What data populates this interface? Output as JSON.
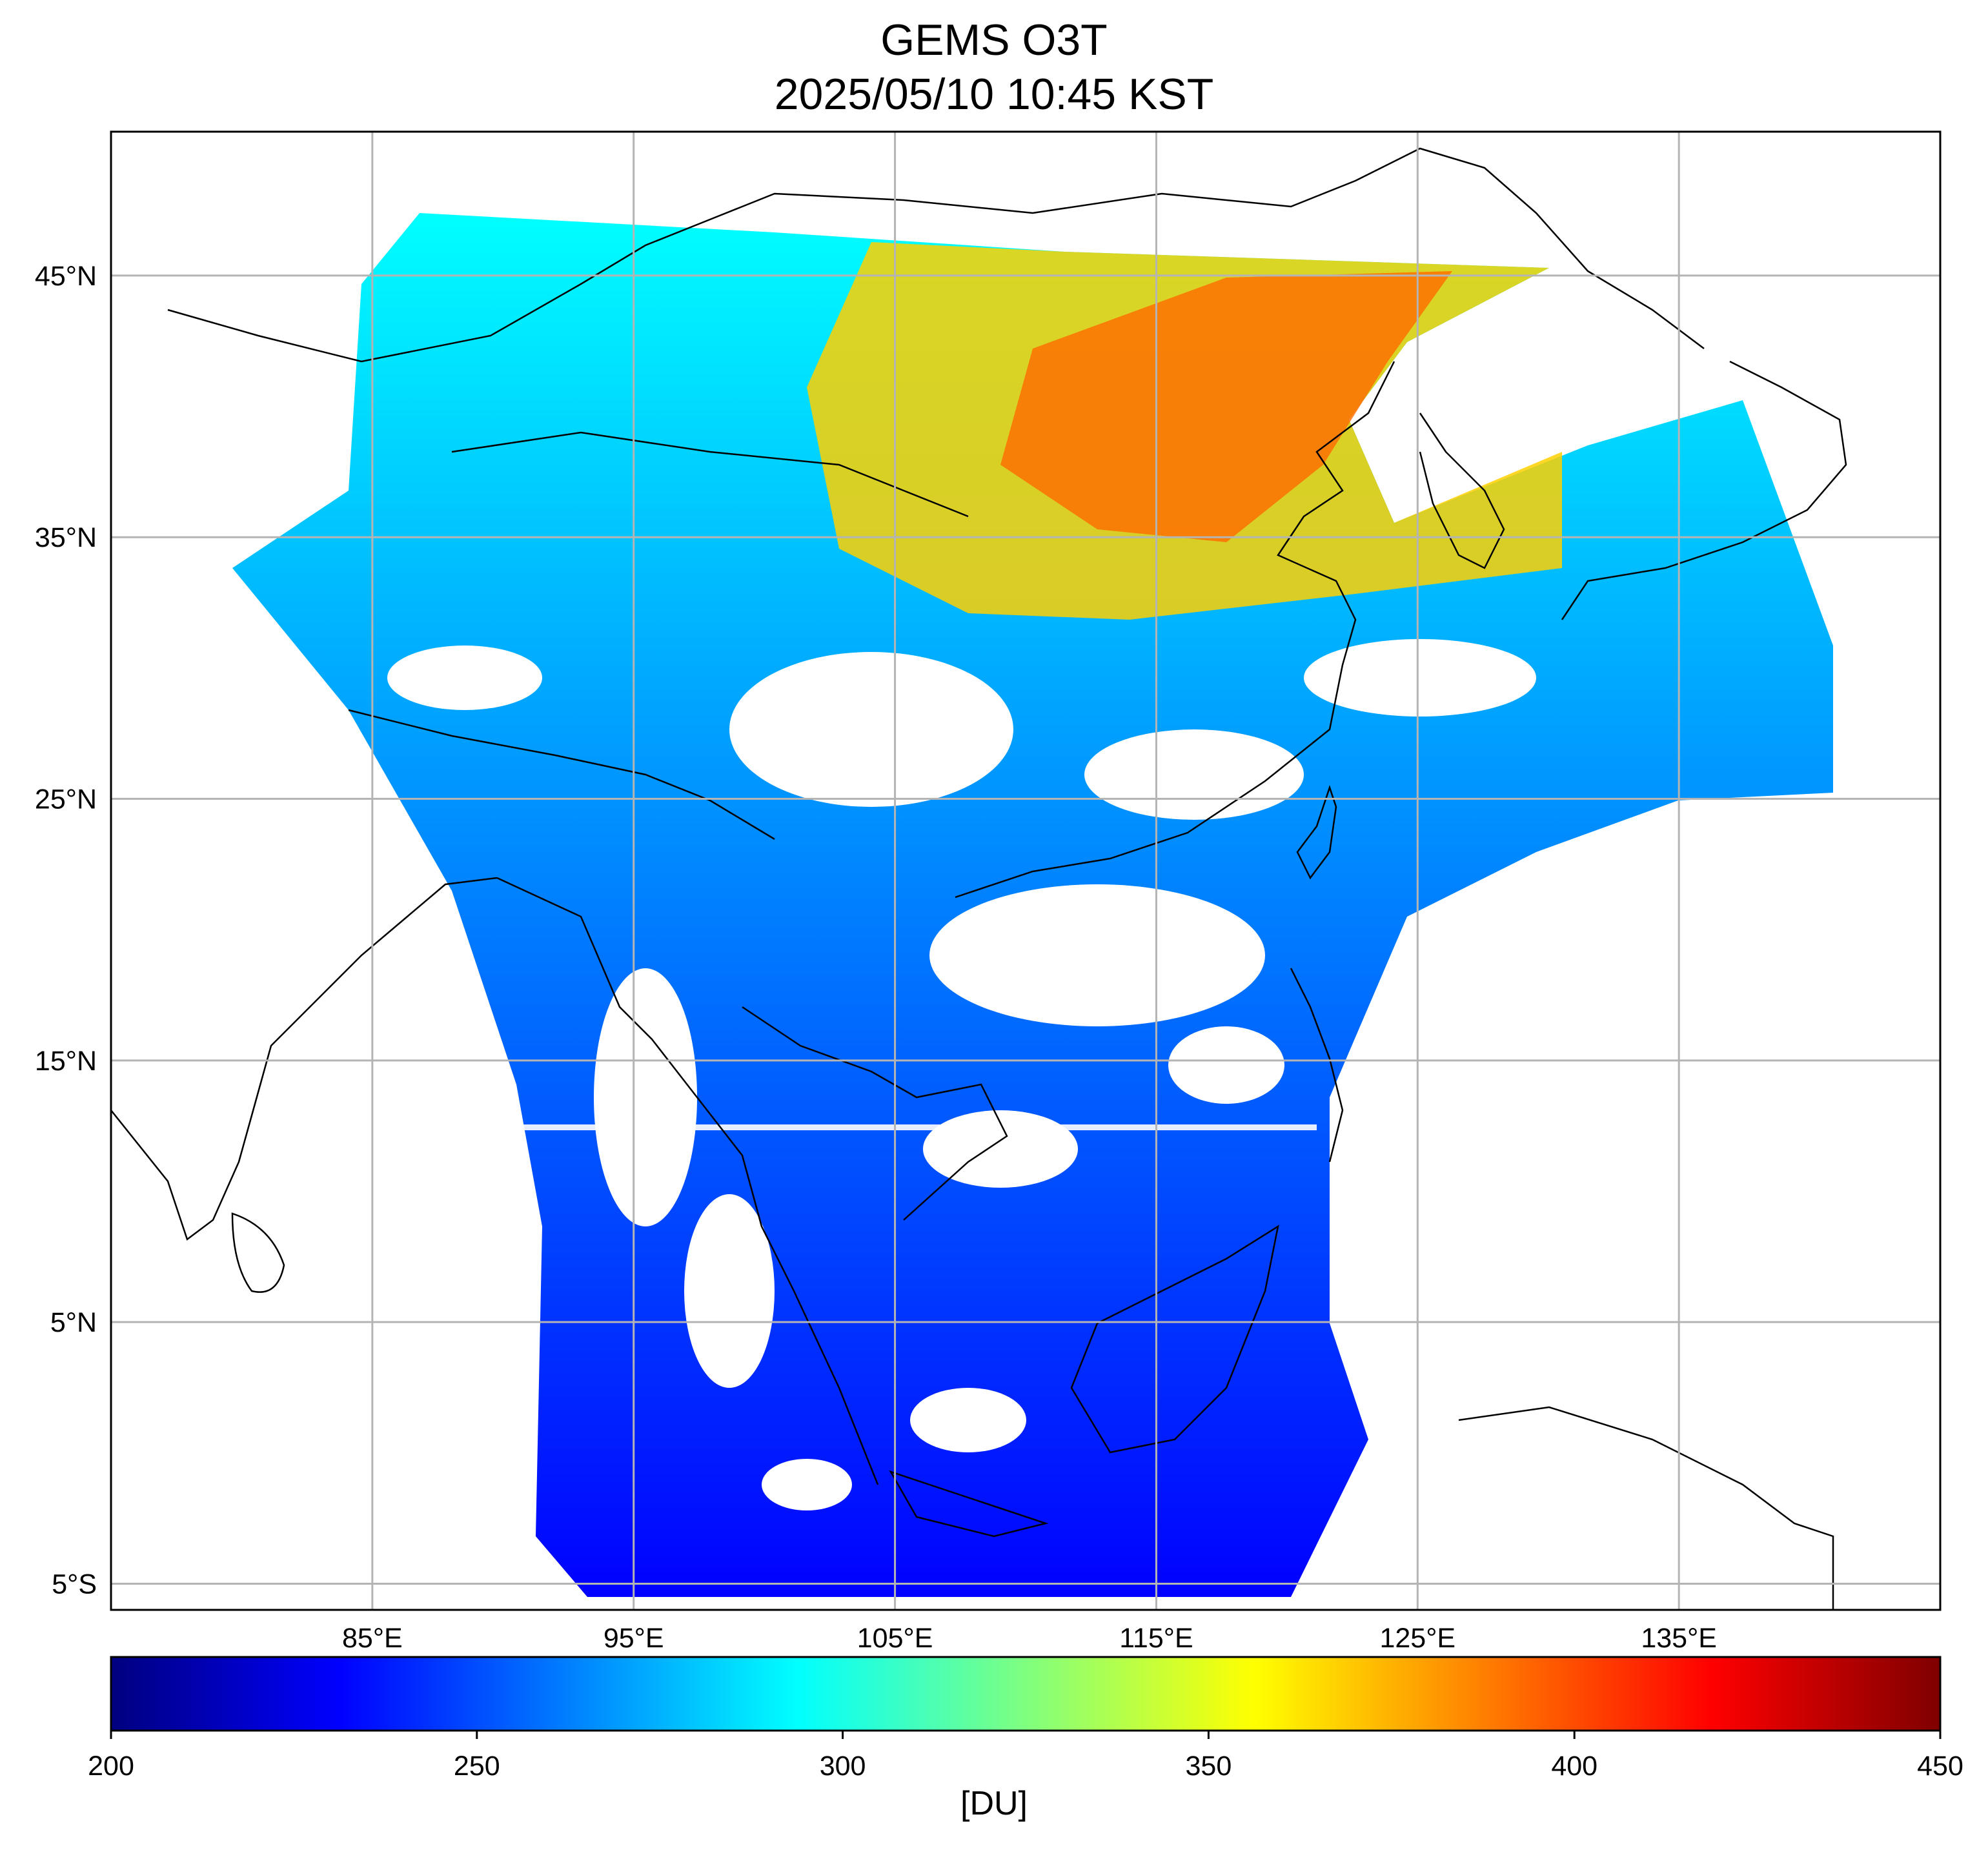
{
  "title": "GEMS O3T",
  "subtitle": "2025/05/10 10:45 KST",
  "map": {
    "lon_range": [
      75,
      145
    ],
    "lat_range": [
      -6,
      50.5
    ],
    "lon_ticks": [
      {
        "value": 85,
        "label": "85°E"
      },
      {
        "value": 95,
        "label": "95°E"
      },
      {
        "value": 105,
        "label": "105°E"
      },
      {
        "value": 115,
        "label": "115°E"
      },
      {
        "value": 125,
        "label": "125°E"
      },
      {
        "value": 135,
        "label": "135°E"
      }
    ],
    "lat_ticks": [
      {
        "value": 45,
        "label": "45°N"
      },
      {
        "value": 35,
        "label": "35°N"
      },
      {
        "value": 25,
        "label": "25°N"
      },
      {
        "value": 15,
        "label": "15°N"
      },
      {
        "value": 5,
        "label": "5°N"
      },
      {
        "value": -5,
        "label": "5°S"
      }
    ],
    "grid": true,
    "grid_color": "#b4b4b4"
  },
  "colorbar": {
    "min": 200,
    "max": 450,
    "ticks": [
      {
        "value": 200,
        "label": "200"
      },
      {
        "value": 250,
        "label": "250"
      },
      {
        "value": 300,
        "label": "300"
      },
      {
        "value": 350,
        "label": "350"
      },
      {
        "value": 400,
        "label": "400"
      },
      {
        "value": 450,
        "label": "450"
      }
    ],
    "unit": "[DU]",
    "colormap": "jet",
    "colors": [
      "#00007f",
      "#0000ff",
      "#007fff",
      "#00ffff",
      "#7fff7f",
      "#ffff00",
      "#ff7f00",
      "#ff0000",
      "#7f0000"
    ]
  }
}
